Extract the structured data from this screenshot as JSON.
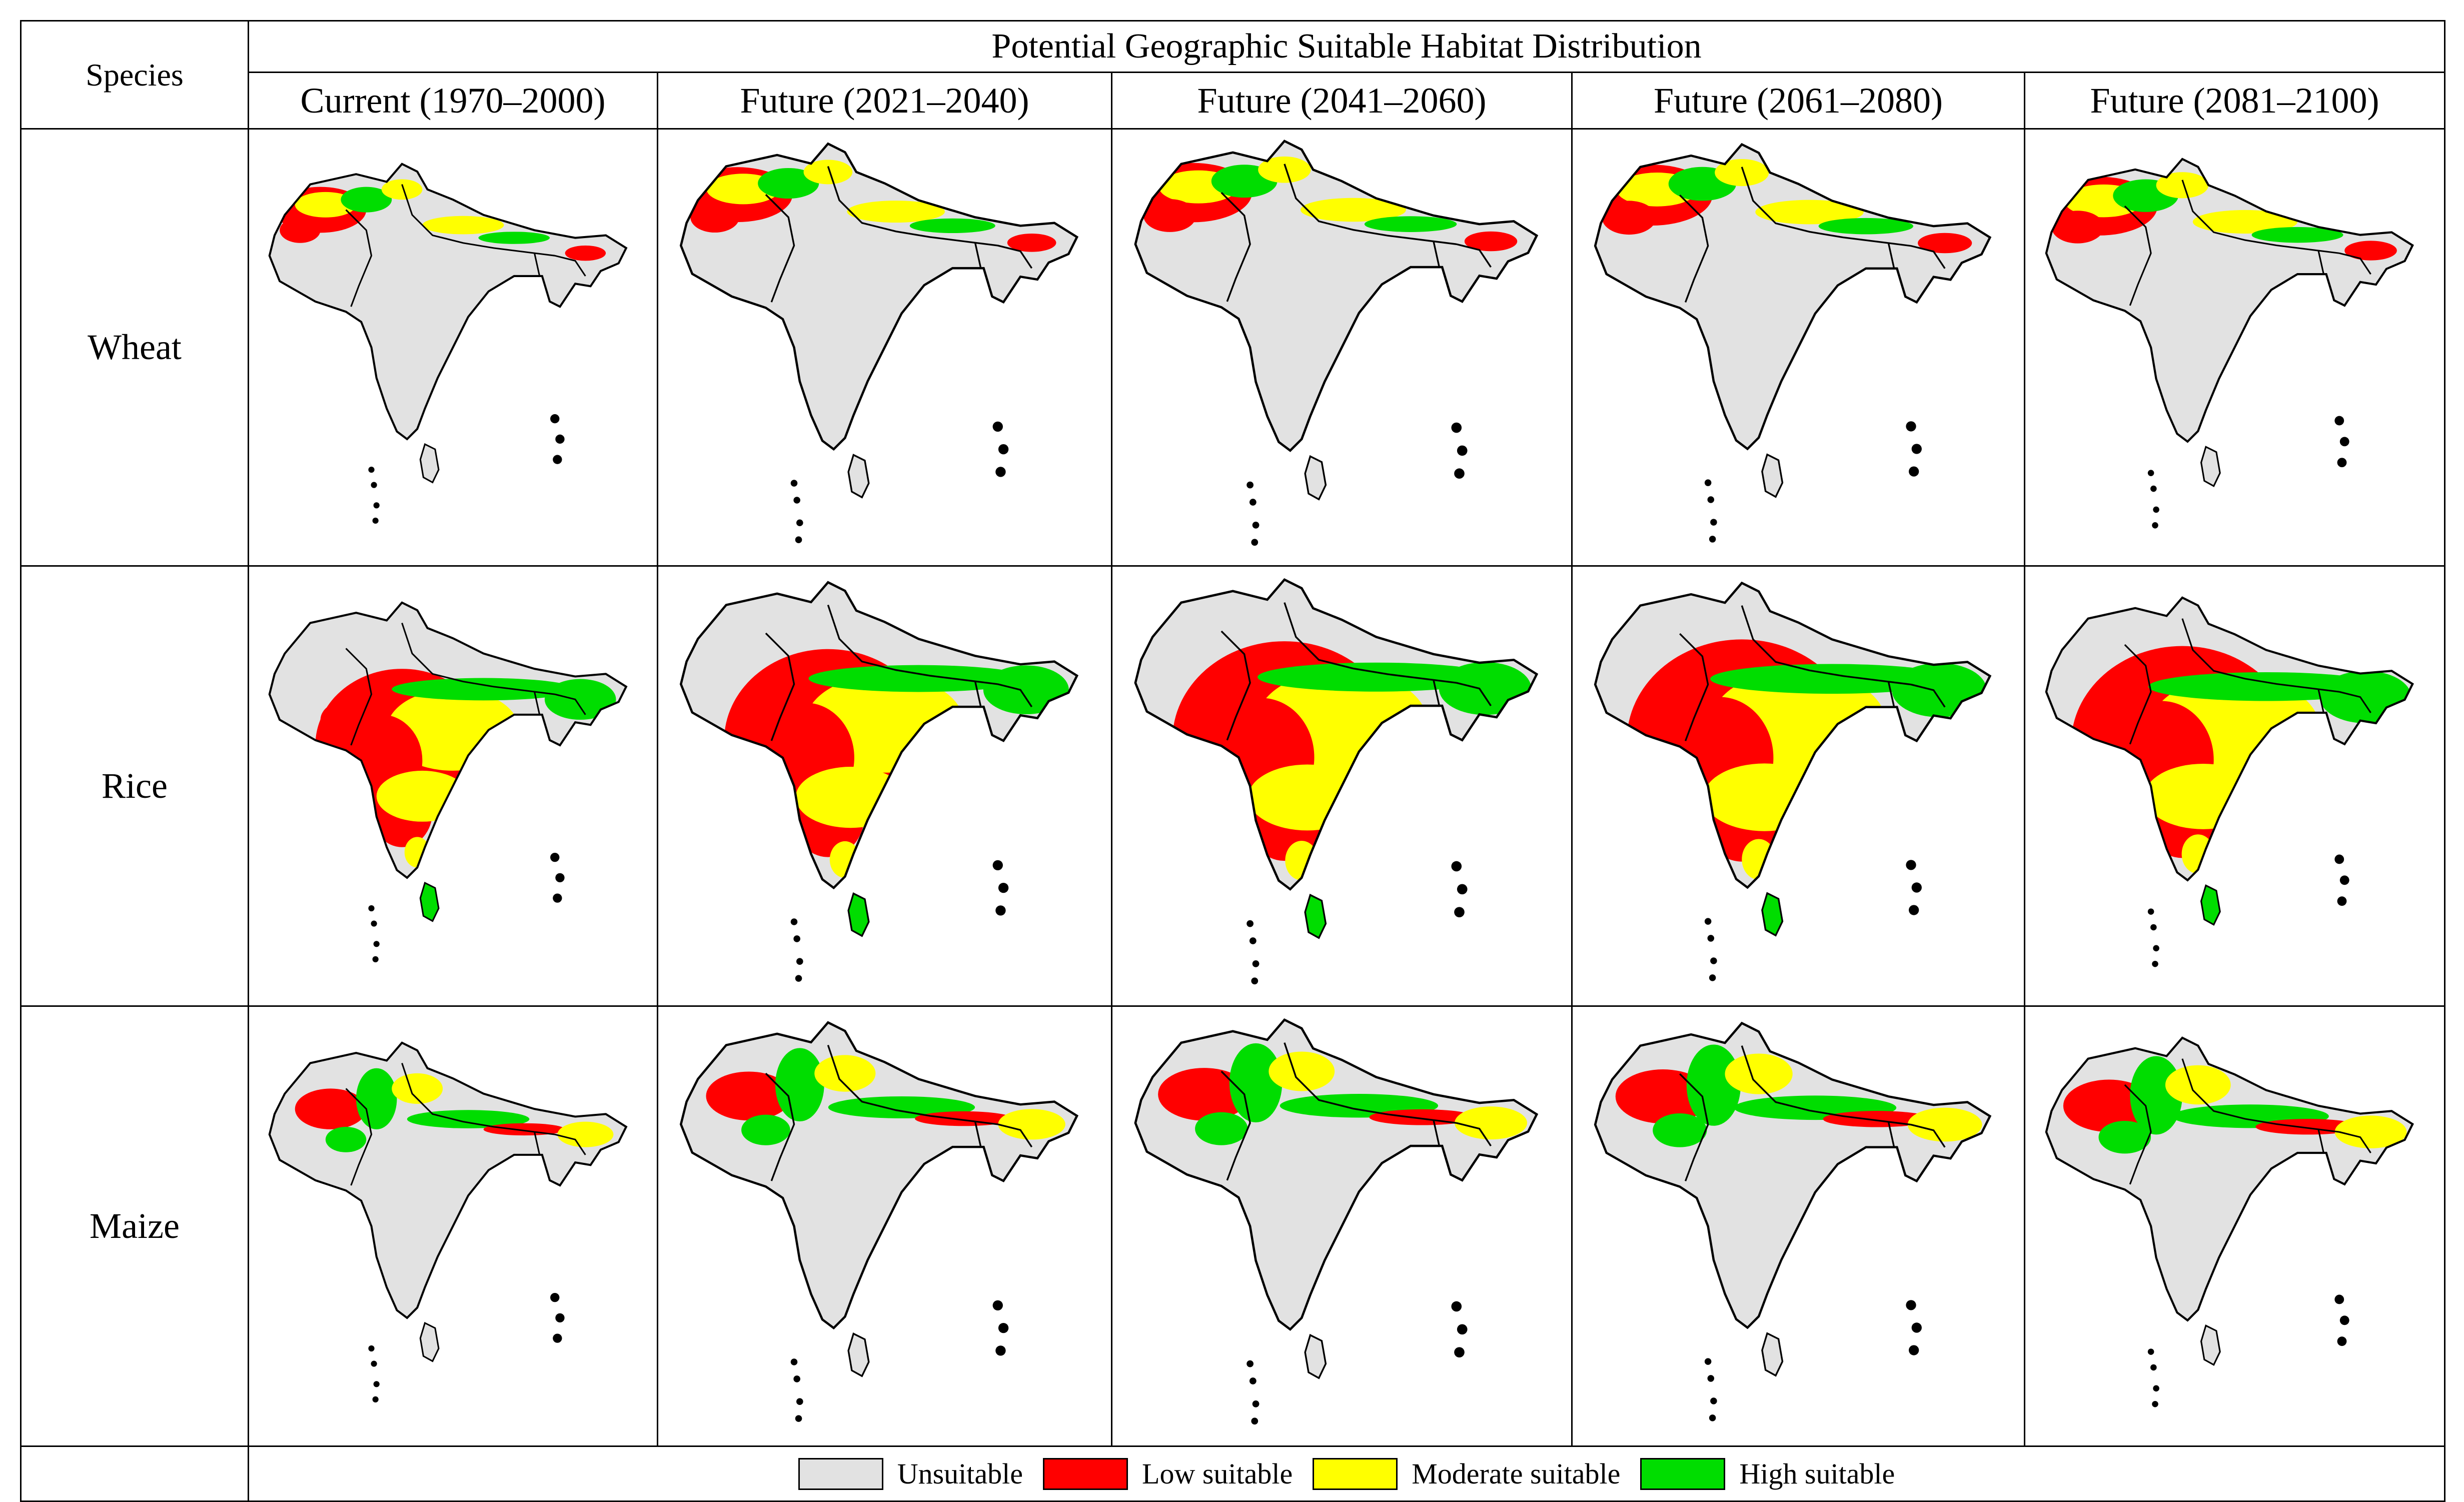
{
  "header": {
    "species_label": "Species",
    "title": "Potential Geographic Suitable Habitat Distribution"
  },
  "periods": [
    "Current (1970–2000)",
    "Future (2021–2040)",
    "Future (2041–2060)",
    "Future (2061–2080)",
    "Future (2081–2100)"
  ],
  "species": [
    "Wheat",
    "Rice",
    "Maize"
  ],
  "legend": [
    {
      "label": "Unsuitable",
      "color": "#e2e2e2"
    },
    {
      "label": "Low suitable",
      "color": "#ff0000"
    },
    {
      "label": "Moderate suitable",
      "color": "#ffff00"
    },
    {
      "label": "High suitable",
      "color": "#00dd00"
    }
  ],
  "colors": {
    "unsuitable": "#e2e2e2",
    "low": "#ff0000",
    "moderate": "#ffff00",
    "high": "#00dd00",
    "border": "#000000"
  }
}
